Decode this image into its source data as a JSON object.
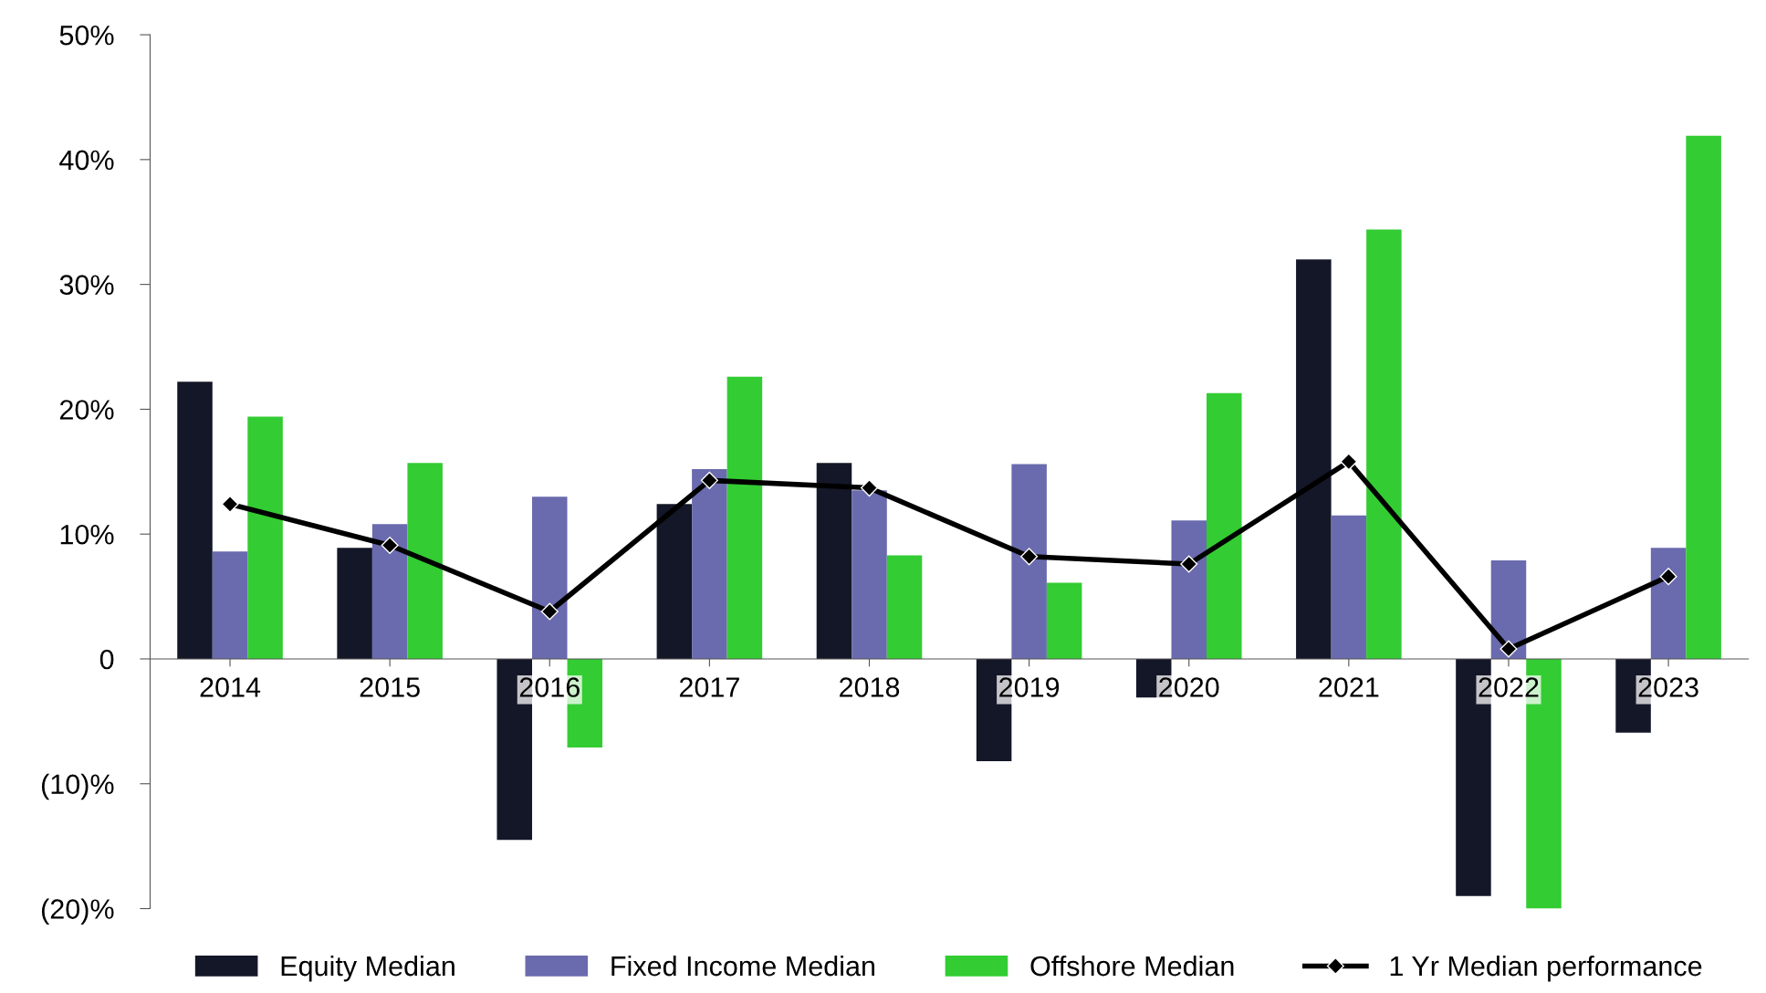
{
  "chart_data": {
    "type": "bar",
    "categories": [
      "2014",
      "2015",
      "2016",
      "2017",
      "2018",
      "2019",
      "2020",
      "2021",
      "2022",
      "2023"
    ],
    "series": [
      {
        "name": "Equity Median",
        "color": "#141727",
        "values": [
          22.2,
          8.9,
          -14.5,
          12.4,
          15.7,
          -8.2,
          -3.1,
          32.0,
          -19.0,
          -5.9
        ]
      },
      {
        "name": "Fixed Income Median",
        "color": "#6a6aae",
        "values": [
          8.6,
          10.8,
          13.0,
          15.2,
          13.5,
          15.6,
          11.1,
          11.5,
          7.9,
          8.9
        ]
      },
      {
        "name": "Offshore Median",
        "color": "#33cc33",
        "values": [
          19.4,
          15.7,
          -7.1,
          22.6,
          8.3,
          6.1,
          21.3,
          34.4,
          -20.0,
          41.9
        ]
      },
      {
        "name": "1 Yr Median performance",
        "type": "line",
        "color": "#000000",
        "marker": "diamond",
        "values": [
          12.4,
          9.1,
          3.8,
          14.3,
          13.7,
          8.2,
          7.6,
          15.8,
          0.8,
          6.6
        ]
      }
    ],
    "ylim": [
      -20,
      50
    ],
    "yticks": [
      {
        "value": -20,
        "label": "(20)%"
      },
      {
        "value": -10,
        "label": "(10)%"
      },
      {
        "value": 0,
        "label": "0"
      },
      {
        "value": 10,
        "label": "10%"
      },
      {
        "value": 20,
        "label": "20%"
      },
      {
        "value": 30,
        "label": "30%"
      },
      {
        "value": 40,
        "label": "40%"
      },
      {
        "value": 50,
        "label": "50%"
      }
    ],
    "grid": false,
    "legend": "bottom"
  }
}
